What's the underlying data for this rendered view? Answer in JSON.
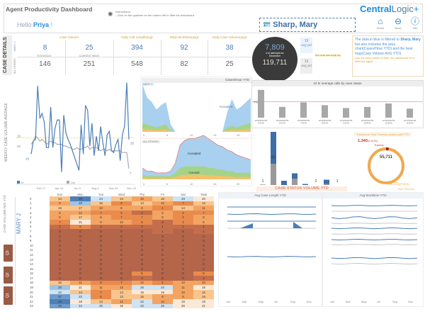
{
  "header": {
    "title": "Agent Productivity Dashboard",
    "greeting": "Hello",
    "user": "Priya",
    "greeting_end": "!",
    "instructions_title": "Instructions:",
    "instructions_text": "- Click on the quarters on the bottom left to filter the dashboard",
    "agent": "Sharp, Mary",
    "logo_main": "Central",
    "logo_sub": "Logic",
    "logo_mark": "+",
    "nav": [
      {
        "label": "Home",
        "icon": "home-icon",
        "glyph": "⌂"
      },
      {
        "label": "Back",
        "icon": "back-icon",
        "glyph": "⊖"
      },
      {
        "label": "Info",
        "icon": "info-icon",
        "glyph": "ⓘ"
      }
    ]
  },
  "kpi": {
    "side_label": "CASE DETAILS",
    "row1_label": "MARY J",
    "row2_label": "ALL OTHERS",
    "headers": [
      "Case Volume",
      "Daily Call Length(avg)",
      "Daily Worktime(avg)",
      "Daily Case Volume(avg)"
    ],
    "sub_yesterday": "YESTERDAY",
    "sub_week": "CURRENT WEEK",
    "row1": [
      "8",
      "25",
      "394",
      "92",
      "38"
    ],
    "row2": [
      "146",
      "251",
      "548",
      "82",
      "25"
    ]
  },
  "attempts": {
    "value": "7,809",
    "label": "# of attempts for December",
    "total": "119,711"
  },
  "ytd_badges": [
    {
      "value": "19",
      "label": "avg ytd"
    },
    {
      "value": "19",
      "label": "avg ytd"
    }
  ],
  "prev_week_label": "Prev week case length avg",
  "info": {
    "line1": "The data in blue is filtered to",
    "agent": "Sharp, Mary",
    "line2": "but also includes the area chart(Cases/Hour YTD) and the heat map(Case Volume AVG YTD)",
    "note": "Use the back button to filter the dashboard for a different agent"
  },
  "weekly": {
    "ylabel": "WEEKLY CASE VOLUME AVERAGE",
    "legend": [
      "M",
      "Out"
    ],
    "xticks": [
      "Feb 17",
      "Apr 14",
      "Jun 9",
      "Aug 4",
      "Sep 29",
      "Nov 24"
    ],
    "labels": {
      "start": "16",
      "ref1": "26",
      "ref2": "20",
      "end_blue": "25",
      "end_grey": "7"
    },
    "ref_value": 26,
    "ymax": 62,
    "blue": [
      16,
      24,
      25,
      58,
      38,
      41,
      36,
      20,
      20,
      45,
      20,
      32,
      37,
      37,
      5,
      40,
      29,
      25,
      22,
      18,
      14,
      10,
      6,
      34,
      16,
      46,
      43,
      21,
      35,
      15,
      27,
      18,
      33,
      23,
      15,
      28,
      30,
      18,
      17,
      22,
      25,
      12,
      28,
      33,
      60,
      25
    ],
    "grey": [
      22,
      24,
      27,
      26,
      24,
      25,
      24,
      22,
      23,
      24,
      23,
      23,
      22,
      22,
      22,
      21,
      21,
      20,
      20,
      19,
      19,
      20,
      19,
      19,
      20,
      20,
      21,
      19,
      20,
      20,
      20,
      19,
      18,
      19,
      19,
      18,
      19,
      18,
      18,
      18,
      18,
      18,
      17,
      17,
      17,
      7
    ],
    "colors": {
      "blue": "#4a7db8",
      "grey": "#aaaaaa",
      "ref": "#f1e6a0"
    }
  },
  "cases_hour": {
    "title": "Cases/Hour YTD",
    "top_label": "MARY J",
    "bottom_label": "ALL OTHERS",
    "xticks": [
      "0",
      "6",
      "10",
      "15",
      "20"
    ],
    "top": {
      "accepted": [
        26,
        18,
        16,
        12,
        14,
        15,
        4,
        0,
        0,
        0,
        0,
        0,
        0,
        0,
        0,
        0,
        0,
        0,
        10,
        18,
        12,
        13,
        15,
        17
      ],
      "consult": [
        6,
        5,
        4,
        3,
        4,
        5,
        1,
        0,
        0,
        0,
        0,
        0,
        0,
        0,
        0,
        0,
        0,
        0,
        3,
        4,
        3,
        4,
        5,
        6
      ]
    },
    "bottom": {
      "accepted": [
        4,
        3,
        3,
        2,
        2,
        2,
        3,
        6,
        14,
        16,
        17,
        17,
        18,
        19,
        18,
        16,
        15,
        14,
        13,
        12,
        11,
        10,
        9,
        8
      ],
      "consult": [
        3,
        2,
        2,
        2,
        2,
        2,
        2,
        4,
        7,
        8,
        8,
        8,
        8,
        8,
        7,
        7,
        6,
        6,
        5,
        5,
        4,
        4,
        4,
        4
      ]
    },
    "labels": [
      "Accepted",
      "Consult"
    ],
    "colors": {
      "accepted": "#a9d0ee",
      "consult": "#a6d38a",
      "other": "#f2c26b",
      "line": "#e07070"
    }
  },
  "hourly_bars": {
    "title": "24 hr average calls by case status",
    "avg_label": "avg 27.9",
    "categories": [
      "12/16/2018 PM 5:00:00",
      "12/16/2018 PM 6:00:00",
      "12/16/2018 PM 7:00:00",
      "12/16/2018 PM 8:00:00",
      "12/16/2018 PM 9:00:00",
      "12/16/2018 PM 10:00:00",
      "12/16/2018 PM 11:00:00",
      "12/17/2018 AM 12:00:00"
    ],
    "values": [
      49,
      19,
      27,
      22,
      17,
      19,
      25,
      16
    ],
    "avg": 27.9
  },
  "case_status": {
    "title": "CASE STATUS VOLUME YTD",
    "bars": [
      {
        "grey": 1,
        "blue": 0,
        "label": "1"
      },
      {
        "grey": 40,
        "blue": 60,
        "label": "65"
      },
      {
        "grey": 0,
        "blue": 8
      },
      {
        "grey": 12,
        "blue": 10
      },
      {
        "grey": 0,
        "blue": 2
      },
      {
        "grey": 0,
        "blue": 0,
        "label": "2"
      },
      {
        "grey": 2,
        "blue": 8
      },
      {
        "grey": 0,
        "blue": 0,
        "label": "1"
      }
    ]
  },
  "donut": {
    "title": "Trauma vs. Non-Trauma related calls YTD",
    "total": "55,711",
    "trauma_value": "1,340",
    "trauma_pct": "(2.41%)",
    "trauma_label": "Trauma",
    "non_value": "54,371",
    "non_pct": "(97.59%)",
    "non_label": "Non-Trauma",
    "trauma_share": 0.0241
  },
  "heatmap": {
    "ylabel": "CASE VOLUME AVG YTD",
    "agent": "MARY J",
    "quarters": [
      "Q3",
      "Q2",
      "Q1"
    ],
    "columns": [
      "Sun",
      "Mon",
      "Tue",
      "Wed",
      "Thu",
      "Fri",
      "Sat",
      "Total"
    ],
    "rows": [
      [
        14,
        39,
        24,
        14,
        10,
        15,
        23,
        20
      ],
      [
        9,
        28,
        16,
        6,
        14,
        10,
        7,
        13
      ],
      [
        16,
        17,
        10,
        8,
        8,
        4,
        14,
        11
      ],
      [
        8,
        12,
        7,
        5,
        3,
        9,
        4,
        7
      ],
      [
        8,
        17,
        8,
        7,
        7,
        9,
        4,
        8
      ],
      [
        7,
        21,
        8,
        10,
        5,
        3,
        4,
        8
      ],
      [
        2,
        5,
        2,
        2,
        2,
        1,
        1,
        2
      ],
      [
        0,
        0,
        0,
        0,
        0,
        1,
        0,
        1
      ],
      [
        0,
        0,
        0,
        0,
        0,
        0,
        0,
        0
      ],
      [
        0,
        0,
        0,
        0,
        0,
        0,
        0,
        0
      ],
      [
        0,
        0,
        0,
        0,
        0,
        0,
        0,
        0
      ],
      [
        0,
        0,
        0,
        0,
        0,
        0,
        0,
        0
      ],
      [
        0,
        0,
        0,
        0,
        0,
        0,
        0,
        0
      ],
      [
        0,
        0,
        0,
        0,
        0,
        0,
        0,
        0
      ],
      [
        0,
        0,
        0,
        0,
        0,
        0,
        0,
        0
      ],
      [
        0,
        0,
        0,
        0,
        0,
        0,
        0,
        0
      ],
      [
        0,
        0,
        0,
        0,
        5,
        0,
        0,
        5
      ],
      [
        0,
        0,
        0,
        0,
        3,
        0,
        0,
        3
      ],
      [
        16,
        11,
        5,
        7,
        12,
        5,
        12,
        10
      ],
      [
        28,
        21,
        11,
        12,
        25,
        24,
        11,
        18
      ],
      [
        22,
        14,
        7,
        14,
        18,
        18,
        10,
        15
      ],
      [
        37,
        22,
        6,
        13,
        16,
        9,
        8,
        16
      ],
      [
        42,
        18,
        13,
        12,
        22,
        10,
        19,
        19
      ],
      [
        34,
        24,
        26,
        18,
        22,
        26,
        20,
        21
      ]
    ]
  },
  "avg_case_length": {
    "title": "Avg Case Length YTD",
    "xticks": [
      "Jan",
      "Mar",
      "May",
      "Jul",
      "Sep",
      "Nov"
    ]
  },
  "avg_worktime": {
    "title": "Avg Worktime YTD",
    "xticks": [
      "Jan",
      "Mar",
      "May",
      "Jul",
      "Sep",
      "Nov"
    ]
  }
}
